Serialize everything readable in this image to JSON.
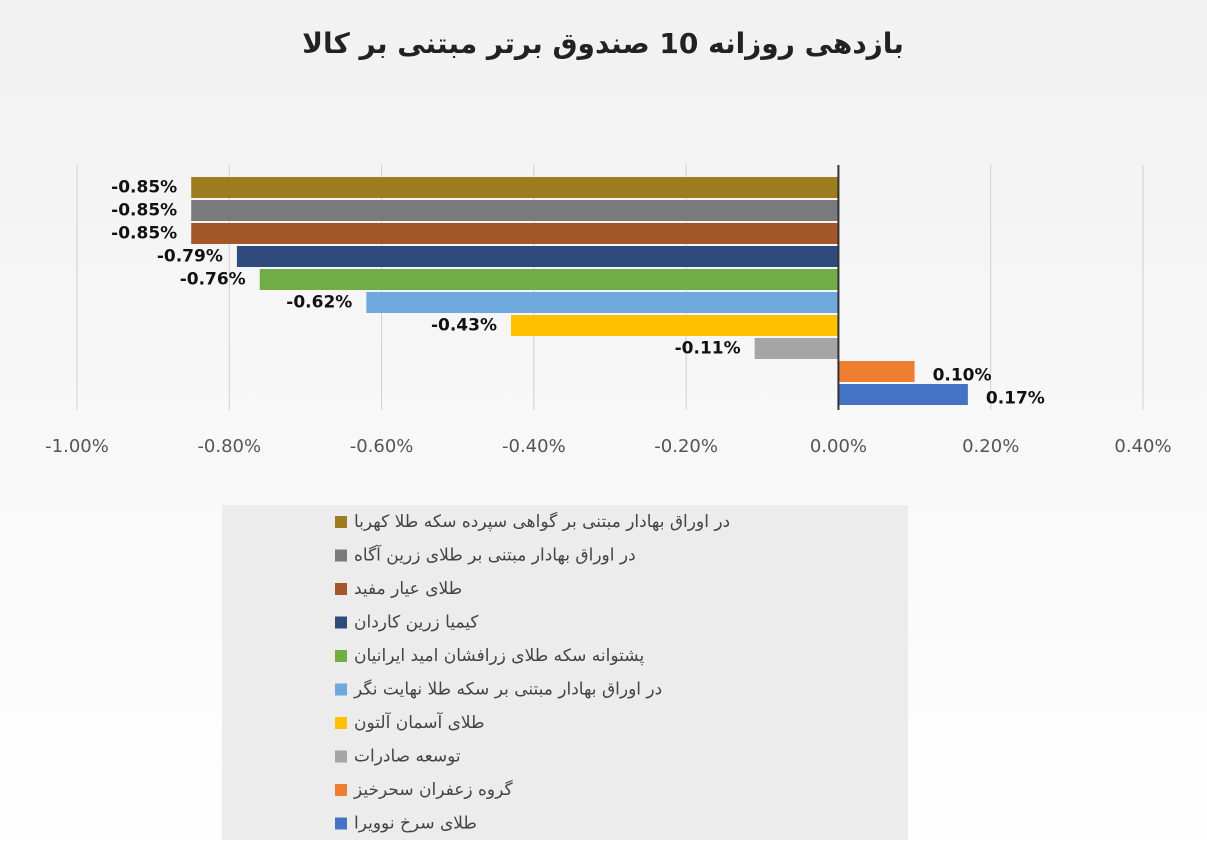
{
  "chart_data": {
    "type": "bar",
    "orientation": "horizontal",
    "title": "بازدهی روزانه 10 صندوق برتر مبتنی بر کالا",
    "series": [
      {
        "name": "در اوراق بهادار مبتنی بر گواهی سپرده سکه طلا کهربا",
        "color": "#9c7c1e",
        "values": [
          -0.85
        ],
        "value_labels": [
          "-0.85%"
        ]
      },
      {
        "name": "در اوراق بهادار مبتنی بر طلای زرین آگاه",
        "color": "#7a7a7a",
        "values": [
          -0.85
        ],
        "value_labels": [
          "-0.85%"
        ]
      },
      {
        "name": "طلای عیار مفید",
        "color": "#a3562a",
        "values": [
          -0.85
        ],
        "value_labels": [
          "-0.85%"
        ]
      },
      {
        "name": "کیمیا زرین کاردان",
        "color": "#2f4b7c",
        "values": [
          -0.79
        ],
        "value_labels": [
          "-0.79%"
        ]
      },
      {
        "name": "پشتوانه سکه طلای زرافشان امید ایرانیان",
        "color": "#70ad47",
        "values": [
          -0.76
        ],
        "value_labels": [
          "-0.76%"
        ]
      },
      {
        "name": "در اوراق بهادار مبتنی بر سکه طلا نهایت نگر",
        "color": "#6fa8dc",
        "values": [
          -0.62
        ],
        "value_labels": [
          "-0.62%"
        ]
      },
      {
        "name": "طلای آسمان آلتون",
        "color": "#ffc000",
        "values": [
          -0.43
        ],
        "value_labels": [
          "-0.43%"
        ]
      },
      {
        "name": "توسعه صادرات",
        "color": "#a5a5a5",
        "values": [
          -0.11
        ],
        "value_labels": [
          "-0.11%"
        ]
      },
      {
        "name": "گروه زعفران سحرخیز",
        "color": "#ed7d31",
        "values": [
          0.1
        ],
        "value_labels": [
          "0.10%"
        ]
      },
      {
        "name": "طلای سرخ نوویرا",
        "color": "#4472c4",
        "values": [
          0.17
        ],
        "value_labels": [
          "0.17%"
        ]
      }
    ],
    "xlim": [
      -1,
      0.4
    ],
    "xticks": [
      {
        "value": -1,
        "label": "-1.00%"
      },
      {
        "value": -0.8,
        "label": "-0.80%"
      },
      {
        "value": -0.6,
        "label": "-0.60%"
      },
      {
        "value": -0.4,
        "label": "-0.40%"
      },
      {
        "value": -0.2,
        "label": "-0.20%"
      },
      {
        "value": 0,
        "label": "0.00%"
      },
      {
        "value": 0.2,
        "label": "0.20%"
      },
      {
        "value": 0.4,
        "label": "0.40%"
      }
    ],
    "grid": true,
    "legend": "bottom"
  }
}
